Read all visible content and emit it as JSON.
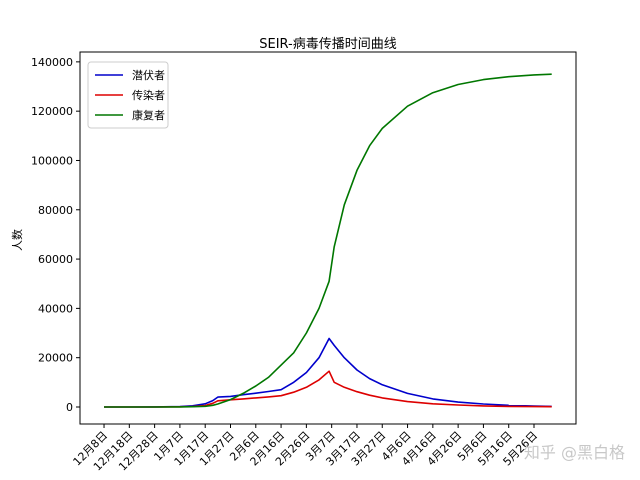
{
  "chart_data": {
    "type": "line",
    "title": "SEIR-病毒传播时间曲线",
    "xlabel": "",
    "ylabel": "人数",
    "ylim": [
      -6900,
      144000
    ],
    "yticks": [
      0,
      20000,
      40000,
      60000,
      80000,
      100000,
      120000,
      140000
    ],
    "xtick_dates": [
      "12-08",
      "12-18",
      "12-28",
      "01-07",
      "01-17",
      "01-27",
      "02-06",
      "02-16",
      "02-26",
      "03-07",
      "03-17",
      "03-27",
      "04-06",
      "04-16",
      "04-26",
      "05-06",
      "05-16",
      "05-26"
    ],
    "xtick_labels": [
      "12月8日",
      "12月18日",
      "12月28日",
      "1月7日",
      "1月17日",
      "1月27日",
      "2月6日",
      "2月16日",
      "2月26日",
      "3月7日",
      "3月17日",
      "3月27日",
      "4月6日",
      "4月16日",
      "4月26日",
      "5月6日",
      "5月16日",
      "5月26日"
    ],
    "grid": false,
    "legend_placement": "top-left",
    "x": [
      "12-08",
      "12-18",
      "12-28",
      "01-07",
      "01-12",
      "01-17",
      "01-20",
      "01-22",
      "01-27",
      "02-01",
      "02-06",
      "02-11",
      "02-16",
      "02-21",
      "02-26",
      "03-02",
      "03-06",
      "03-08",
      "03-12",
      "03-17",
      "03-22",
      "03-27",
      "04-06",
      "04-16",
      "04-26",
      "05-06",
      "05-16",
      "05-26",
      "06-02"
    ],
    "series": [
      {
        "name": "潜伏者",
        "color": "#0000cc",
        "values": [
          0,
          0,
          20,
          150,
          500,
          1300,
          2600,
          4000,
          4300,
          5000,
          5600,
          6300,
          7000,
          10000,
          14000,
          20000,
          27800,
          25000,
          20000,
          15000,
          11500,
          9000,
          5500,
          3300,
          2000,
          1200,
          700,
          400,
          250
        ]
      },
      {
        "name": "传染者",
        "color": "#dd0000",
        "values": [
          0,
          0,
          10,
          60,
          200,
          600,
          1500,
          2500,
          2900,
          3300,
          3700,
          4100,
          4600,
          6000,
          8000,
          11000,
          14500,
          10000,
          8000,
          6200,
          4800,
          3700,
          2200,
          1300,
          800,
          450,
          250,
          150,
          100
        ]
      },
      {
        "name": "康复者",
        "color": "#007700",
        "values": [
          0,
          0,
          5,
          30,
          100,
          300,
          700,
          1200,
          3000,
          5500,
          8500,
          12000,
          17000,
          22000,
          30000,
          40000,
          51000,
          65000,
          82000,
          96000,
          106000,
          113000,
          122000,
          127500,
          130800,
          132800,
          134000,
          134700,
          135000
        ]
      }
    ]
  },
  "watermark": "知乎 @黑白格"
}
